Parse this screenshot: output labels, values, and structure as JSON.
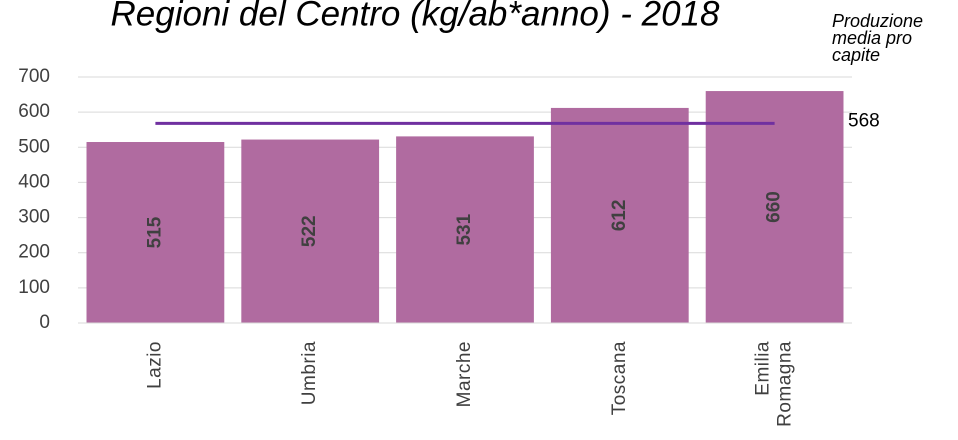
{
  "chart_data": {
    "type": "bar",
    "title": "Regioni del Centro (kg/ab*anno) - 2018",
    "categories": [
      "Lazio",
      "Umbria",
      "Marche",
      "Toscana",
      "Emilia Romagna"
    ],
    "values": [
      515,
      522,
      531,
      612,
      660
    ],
    "color": "#b06ba0",
    "ylim": [
      0,
      700
    ],
    "yticks": [
      0,
      100,
      200,
      300,
      400,
      500,
      600,
      700
    ],
    "grid": true,
    "reference_line": {
      "label": "Produzione media pro capite",
      "value": 568,
      "color": "#7030a0"
    }
  }
}
